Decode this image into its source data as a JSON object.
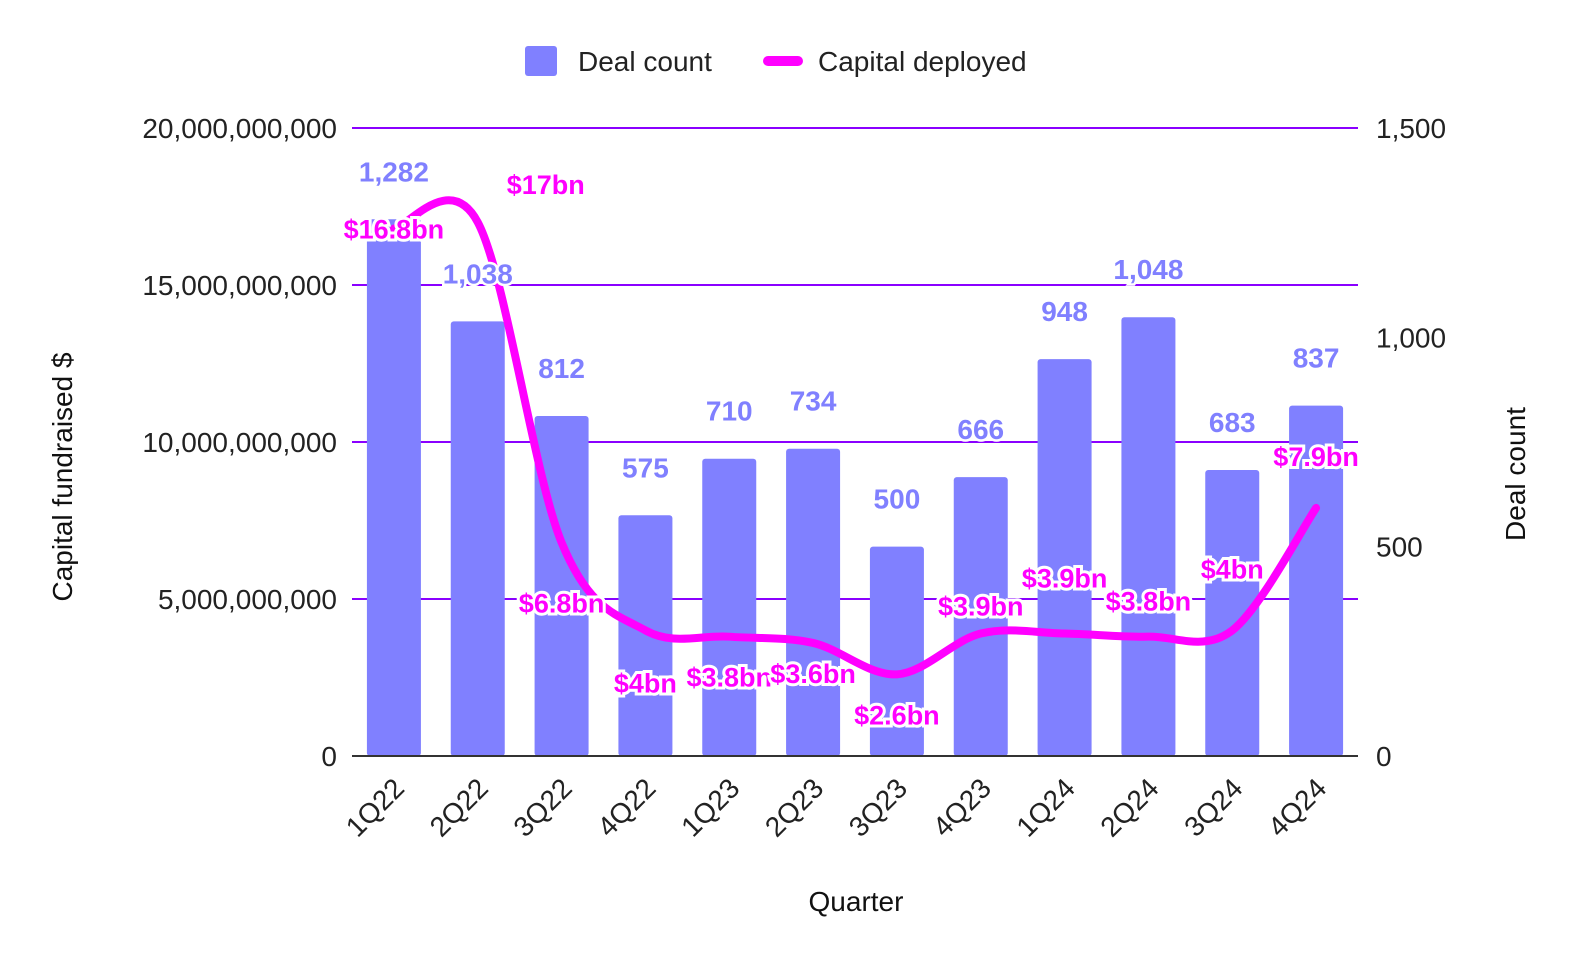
{
  "chart_data": {
    "type": "bar",
    "categories": [
      "1Q22",
      "2Q22",
      "3Q22",
      "4Q22",
      "1Q23",
      "2Q23",
      "3Q23",
      "4Q23",
      "1Q24",
      "2Q24",
      "3Q24",
      "4Q24"
    ],
    "series": [
      {
        "name": "Deal count",
        "type": "bar",
        "axis": "right",
        "values": [
          1282,
          1038,
          812,
          575,
          710,
          734,
          500,
          666,
          948,
          1048,
          683,
          837
        ],
        "labels": [
          "1,282",
          "1,038",
          "812",
          "575",
          "710",
          "734",
          "500",
          "666",
          "948",
          "1,048",
          "683",
          "837"
        ]
      },
      {
        "name": "Capital deployed",
        "type": "line",
        "axis": "left",
        "values": [
          16800000000,
          17000000000,
          6800000000,
          4000000000,
          3800000000,
          3600000000,
          2600000000,
          3900000000,
          3900000000,
          3800000000,
          4000000000,
          7900000000
        ],
        "labels": [
          "$16.8bn",
          "$17bn",
          "$6.8bn",
          "$4bn",
          "$3.8bn",
          "$3.6bn",
          "$2.6bn",
          "$3.9bn",
          "$3.9bn",
          "$3.8bn",
          "$4bn",
          "$7.9bn"
        ]
      }
    ],
    "xlabel": "Quarter",
    "ylabel": "Capital fundraised $",
    "y2label": "Deal count",
    "ylim": [
      0,
      20000000000
    ],
    "y2lim": [
      0,
      1500
    ],
    "yticks": [
      "0",
      "5,000,000,000",
      "10,000,000,000",
      "15,000,000,000",
      "20,000,000,000"
    ],
    "y2ticks": [
      "0",
      "500",
      "1,000",
      "1,500"
    ],
    "legend_position": "top-center",
    "grid": true,
    "colors": {
      "bar": "#8080ff",
      "line": "#ff00ff",
      "grid": "#8a00ff",
      "axis": "#333333"
    }
  }
}
